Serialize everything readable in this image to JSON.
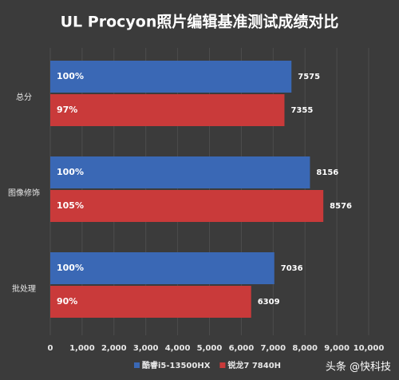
{
  "chart_data": {
    "type": "hbar",
    "title": "UL Procyon照片编辑基准测试成绩对比",
    "categories": [
      "总分",
      "图像修饰",
      "批处理"
    ],
    "series": [
      {
        "name": "酷睿i5-13500HX",
        "color": "#3a68b5",
        "values": [
          7575,
          8156,
          7036
        ],
        "percent_labels": [
          "100%",
          "100%",
          "100%"
        ]
      },
      {
        "name": "锐龙7 7840H",
        "color": "#c93a3a",
        "values": [
          7355,
          8576,
          6309
        ],
        "percent_labels": [
          "97%",
          "105%",
          "90%"
        ]
      }
    ],
    "xlim": [
      0,
      10000
    ],
    "xticks": [
      0,
      {
        "value": 1000,
        "label": "1,000"
      },
      {
        "value": 2000,
        "label": "2,000"
      },
      {
        "value": 3000,
        "label": "3,000"
      },
      {
        "value": 4000,
        "label": "4,000"
      },
      {
        "value": 5000,
        "label": "5,000"
      },
      {
        "value": 6000,
        "label": "6,000"
      },
      {
        "value": 7000,
        "label": "7,000"
      },
      {
        "value": 8000,
        "label": "8,000"
      },
      {
        "value": 9000,
        "label": "9,000"
      },
      {
        "value": 10000,
        "label": "10,000"
      }
    ],
    "grid": true,
    "legend": "bottom",
    "watermark": "头条 @快科技"
  }
}
